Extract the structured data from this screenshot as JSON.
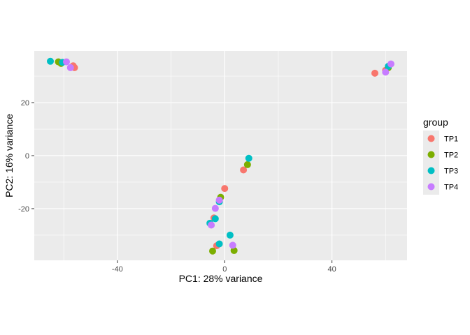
{
  "chart_data": {
    "type": "scatter",
    "title": "",
    "xlabel": "PC1: 28% variance",
    "ylabel": "PC2: 16% variance",
    "xlim": [
      -71,
      68
    ],
    "ylim": [
      -39.5,
      39.5
    ],
    "x_ticks": [
      -40,
      0,
      40
    ],
    "x_tick_labels": [
      "-40",
      "0",
      "40"
    ],
    "y_ticks": [
      -20,
      0,
      20
    ],
    "y_tick_labels": [
      "-20",
      "0",
      "20"
    ],
    "grid": true,
    "legend": {
      "title": "group",
      "placement": "right"
    },
    "series": [
      {
        "name": "TP1",
        "color": "#F8766D",
        "points": [
          [
            -56.5,
            33.9
          ],
          [
            -56,
            33.2
          ],
          [
            56,
            31.1
          ],
          [
            60,
            32.2
          ],
          [
            7,
            -5.4
          ],
          [
            0,
            -12.4
          ],
          [
            -4,
            -23.5
          ],
          [
            -3,
            -34
          ]
        ]
      },
      {
        "name": "TP2",
        "color": "#7CAE00",
        "points": [
          [
            -62,
            35.4
          ],
          [
            -61,
            34.8
          ],
          [
            61,
            33.2
          ],
          [
            8.5,
            -3.4
          ],
          [
            -1.5,
            -15.7
          ],
          [
            -4.5,
            -36
          ],
          [
            3.5,
            -35.8
          ]
        ]
      },
      {
        "name": "TP3",
        "color": "#00BFC4",
        "points": [
          [
            -65,
            35.6
          ],
          [
            -60.5,
            35.2
          ],
          [
            61,
            33.7
          ],
          [
            9,
            -1
          ],
          [
            -2,
            -17.4
          ],
          [
            -5.5,
            -25.5
          ],
          [
            -2,
            -33.3
          ],
          [
            2,
            -30
          ],
          [
            -3.5,
            -23.8
          ]
        ]
      },
      {
        "name": "TP4",
        "color": "#C77CFF",
        "points": [
          [
            -59,
            35.4
          ],
          [
            -57.5,
            33.2
          ],
          [
            62,
            34.6
          ],
          [
            60,
            31.5
          ],
          [
            -2,
            -16.8
          ],
          [
            -3.5,
            -19.9
          ],
          [
            -5,
            -26.2
          ],
          [
            3,
            -33.8
          ]
        ]
      }
    ]
  }
}
